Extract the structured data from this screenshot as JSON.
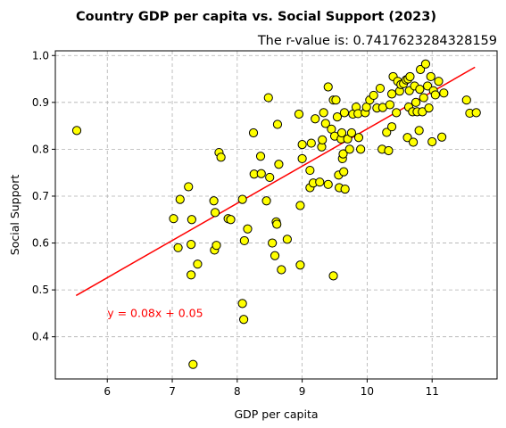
{
  "chart_data": {
    "type": "scatter",
    "title": "Country GDP per capita vs. Social Support (2023)",
    "subtitle": "The r-value is: 0.7417623284328159",
    "xlabel": "GDP per capita",
    "ylabel": "Social Support",
    "xlim": [
      5.2,
      12.0
    ],
    "ylim": [
      0.31,
      1.01
    ],
    "xticks": [
      6,
      7,
      8,
      9,
      10,
      11
    ],
    "yticks": [
      0.4,
      0.5,
      0.6,
      0.7,
      0.8,
      0.9,
      1.0
    ],
    "xtick_labels": [
      "6",
      "7",
      "8",
      "9",
      "10",
      "11"
    ],
    "ytick_labels": [
      "0.4",
      "0.5",
      "0.6",
      "0.7",
      "0.8",
      "0.9",
      "1.0"
    ],
    "grid": true,
    "marker_color": "#ffff00",
    "marker_edge_color": "#000000",
    "regression": {
      "color": "#ff0000",
      "start": [
        5.52,
        0.488
      ],
      "end": [
        11.66,
        0.975
      ],
      "equation": "y = 0.08x + 0.05",
      "equation_pos": [
        6.0,
        0.45
      ]
    },
    "points": [
      [
        5.53,
        0.84
      ],
      [
        7.02,
        0.652
      ],
      [
        7.09,
        0.59
      ],
      [
        7.12,
        0.693
      ],
      [
        7.25,
        0.72
      ],
      [
        7.29,
        0.597
      ],
      [
        7.29,
        0.532
      ],
      [
        7.3,
        0.65
      ],
      [
        7.32,
        0.341
      ],
      [
        7.39,
        0.555
      ],
      [
        7.64,
        0.69
      ],
      [
        7.65,
        0.585
      ],
      [
        7.66,
        0.665
      ],
      [
        7.68,
        0.595
      ],
      [
        7.72,
        0.793
      ],
      [
        7.75,
        0.783
      ],
      [
        7.86,
        0.652
      ],
      [
        7.9,
        0.65
      ],
      [
        8.08,
        0.471
      ],
      [
        8.08,
        0.693
      ],
      [
        8.1,
        0.437
      ],
      [
        8.11,
        0.605
      ],
      [
        8.16,
        0.63
      ],
      [
        8.25,
        0.835
      ],
      [
        8.26,
        0.747
      ],
      [
        8.36,
        0.785
      ],
      [
        8.37,
        0.748
      ],
      [
        8.45,
        0.69
      ],
      [
        8.5,
        0.74
      ],
      [
        8.48,
        0.91
      ],
      [
        8.54,
        0.6
      ],
      [
        8.58,
        0.573
      ],
      [
        8.6,
        0.645
      ],
      [
        8.61,
        0.64
      ],
      [
        8.62,
        0.853
      ],
      [
        8.64,
        0.768
      ],
      [
        8.68,
        0.543
      ],
      [
        8.77,
        0.608
      ],
      [
        8.95,
        0.875
      ],
      [
        8.97,
        0.553
      ],
      [
        8.97,
        0.68
      ],
      [
        9.0,
        0.81
      ],
      [
        9.0,
        0.78
      ],
      [
        9.12,
        0.755
      ],
      [
        9.12,
        0.718
      ],
      [
        9.14,
        0.813
      ],
      [
        9.17,
        0.728
      ],
      [
        9.2,
        0.865
      ],
      [
        9.27,
        0.73
      ],
      [
        9.3,
        0.805
      ],
      [
        9.31,
        0.82
      ],
      [
        9.33,
        0.878
      ],
      [
        9.36,
        0.855
      ],
      [
        9.4,
        0.933
      ],
      [
        9.4,
        0.725
      ],
      [
        9.45,
        0.843
      ],
      [
        9.48,
        0.53
      ],
      [
        9.48,
        0.905
      ],
      [
        9.5,
        0.828
      ],
      [
        9.52,
        0.905
      ],
      [
        9.54,
        0.869
      ],
      [
        9.56,
        0.745
      ],
      [
        9.57,
        0.718
      ],
      [
        9.6,
        0.822
      ],
      [
        9.61,
        0.835
      ],
      [
        9.62,
        0.78
      ],
      [
        9.63,
        0.79
      ],
      [
        9.64,
        0.752
      ],
      [
        9.65,
        0.878
      ],
      [
        9.66,
        0.715
      ],
      [
        9.7,
        0.822
      ],
      [
        9.73,
        0.8
      ],
      [
        9.76,
        0.835
      ],
      [
        9.78,
        0.875
      ],
      [
        9.83,
        0.89
      ],
      [
        9.86,
        0.876
      ],
      [
        9.87,
        0.825
      ],
      [
        9.9,
        0.8
      ],
      [
        9.97,
        0.878
      ],
      [
        9.99,
        0.89
      ],
      [
        10.04,
        0.905
      ],
      [
        10.1,
        0.915
      ],
      [
        10.15,
        0.888
      ],
      [
        10.2,
        0.93
      ],
      [
        10.23,
        0.8
      ],
      [
        10.24,
        0.889
      ],
      [
        10.3,
        0.836
      ],
      [
        10.33,
        0.797
      ],
      [
        10.35,
        0.895
      ],
      [
        10.38,
        0.848
      ],
      [
        10.38,
        0.918
      ],
      [
        10.4,
        0.955
      ],
      [
        10.45,
        0.878
      ],
      [
        10.47,
        0.945
      ],
      [
        10.5,
        0.924
      ],
      [
        10.52,
        0.938
      ],
      [
        10.56,
        0.94
      ],
      [
        10.6,
        0.948
      ],
      [
        10.62,
        0.825
      ],
      [
        10.63,
        0.95
      ],
      [
        10.64,
        0.89
      ],
      [
        10.65,
        0.925
      ],
      [
        10.66,
        0.955
      ],
      [
        10.7,
        0.88
      ],
      [
        10.71,
        0.815
      ],
      [
        10.73,
        0.935
      ],
      [
        10.75,
        0.9
      ],
      [
        10.77,
        0.88
      ],
      [
        10.8,
        0.84
      ],
      [
        10.81,
        0.928
      ],
      [
        10.82,
        0.97
      ],
      [
        10.85,
        0.88
      ],
      [
        10.87,
        0.91
      ],
      [
        10.9,
        0.982
      ],
      [
        10.93,
        0.935
      ],
      [
        10.95,
        0.888
      ],
      [
        10.98,
        0.955
      ],
      [
        11.0,
        0.816
      ],
      [
        11.02,
        0.925
      ],
      [
        11.05,
        0.916
      ],
      [
        11.1,
        0.945
      ],
      [
        11.15,
        0.826
      ],
      [
        11.18,
        0.92
      ],
      [
        11.53,
        0.905
      ],
      [
        11.58,
        0.877
      ],
      [
        11.68,
        0.878
      ]
    ]
  }
}
